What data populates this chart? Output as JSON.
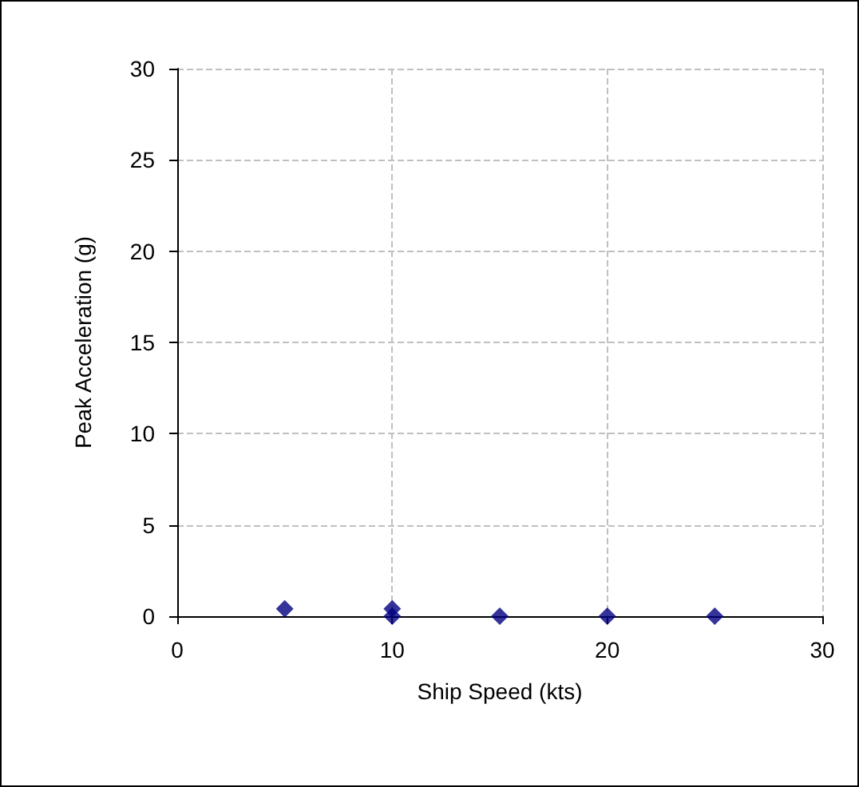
{
  "chart_data": {
    "type": "scatter",
    "xlabel": "Ship Speed (kts)",
    "ylabel": "Peak Acceleration (g)",
    "x": [
      5,
      10,
      10,
      15,
      20,
      25
    ],
    "series": [
      {
        "color": "#000080",
        "values": [
          0.4,
          0.4,
          0,
          0,
          0,
          0
        ]
      }
    ],
    "xlim": [
      0,
      30
    ],
    "xticks": [
      0,
      10,
      20,
      30
    ],
    "ylim": [
      0,
      30
    ],
    "yticks": [
      0,
      5,
      10,
      15,
      20,
      25,
      30
    ],
    "grid": true,
    "marker": "diamond"
  }
}
